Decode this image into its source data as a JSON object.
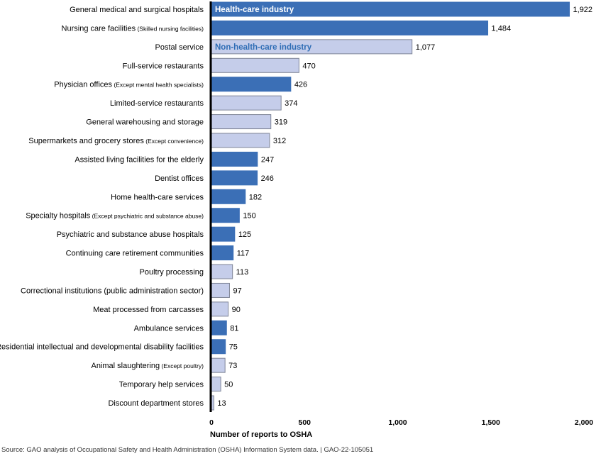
{
  "chart_data": {
    "type": "bar",
    "orientation": "horizontal",
    "xlabel": "Number of reports to OSHA",
    "xlim": [
      0,
      2000
    ],
    "xticks": [
      0,
      500,
      1000,
      1500,
      2000
    ],
    "xtick_labels": [
      "0",
      "500",
      "1,000",
      "1,500",
      "2,000"
    ],
    "grid": false,
    "legend": {
      "placement": "inside-bars-top",
      "entries": [
        {
          "name": "Health-care industry",
          "group": "health",
          "color": "#3b6fb6"
        },
        {
          "name": "Non-health-care industry",
          "group": "nonhealth",
          "color": "#c5cdea"
        }
      ]
    },
    "colors": {
      "health": "#3b6fb6",
      "nonhealth": "#c5cdea",
      "nonhealth_border": "#7f8597",
      "legend_text_nonhealth": "#2f6db5"
    },
    "bars": [
      {
        "label": "General medical and surgical hospitals",
        "note": "",
        "value": 1922,
        "value_label": "1,922",
        "group": "health"
      },
      {
        "label": "Nursing care facilities",
        "note": "(Skilled nursing facilities)",
        "value": 1484,
        "value_label": "1,484",
        "group": "health"
      },
      {
        "label": "Postal service",
        "note": "",
        "value": 1077,
        "value_label": "1,077",
        "group": "nonhealth"
      },
      {
        "label": "Full-service restaurants",
        "note": "",
        "value": 470,
        "value_label": "470",
        "group": "nonhealth"
      },
      {
        "label": "Physician offices",
        "note": "(Except mental health specialists)",
        "value": 426,
        "value_label": "426",
        "group": "health"
      },
      {
        "label": "Limited-service restaurants",
        "note": "",
        "value": 374,
        "value_label": "374",
        "group": "nonhealth"
      },
      {
        "label": "General warehousing and storage",
        "note": "",
        "value": 319,
        "value_label": "319",
        "group": "nonhealth"
      },
      {
        "label": "Supermarkets and grocery stores",
        "note": "(Except convenience)",
        "value": 312,
        "value_label": "312",
        "group": "nonhealth"
      },
      {
        "label": "Assisted living facilities for the elderly",
        "note": "",
        "value": 247,
        "value_label": "247",
        "group": "health"
      },
      {
        "label": "Dentist offices",
        "note": "",
        "value": 246,
        "value_label": "246",
        "group": "health"
      },
      {
        "label": "Home health-care services",
        "note": "",
        "value": 182,
        "value_label": "182",
        "group": "health"
      },
      {
        "label": "Specialty hospitals",
        "note": "(Except psychiatric and substance abuse)",
        "value": 150,
        "value_label": "150",
        "group": "health"
      },
      {
        "label": "Psychiatric and substance abuse hospitals",
        "note": "",
        "value": 125,
        "value_label": "125",
        "group": "health"
      },
      {
        "label": "Continuing care retirement communities",
        "note": "",
        "value": 117,
        "value_label": "117",
        "group": "health"
      },
      {
        "label": "Poultry processing",
        "note": "",
        "value": 113,
        "value_label": "113",
        "group": "nonhealth"
      },
      {
        "label": "Correctional institutions (public administration sector)",
        "note": "",
        "value": 97,
        "value_label": "97",
        "group": "nonhealth"
      },
      {
        "label": "Meat processed from carcasses",
        "note": "",
        "value": 90,
        "value_label": "90",
        "group": "nonhealth"
      },
      {
        "label": "Ambulance services",
        "note": "",
        "value": 81,
        "value_label": "81",
        "group": "health"
      },
      {
        "label": "Residential intellectual and developmental disability facilities",
        "note": "",
        "value": 75,
        "value_label": "75",
        "group": "health"
      },
      {
        "label": "Animal slaughtering",
        "note": "(Except poultry)",
        "value": 73,
        "value_label": "73",
        "group": "nonhealth"
      },
      {
        "label": "Temporary help services",
        "note": "",
        "value": 50,
        "value_label": "50",
        "group": "nonhealth"
      },
      {
        "label": "Discount department stores",
        "note": "",
        "value": 13,
        "value_label": "13",
        "group": "nonhealth"
      }
    ]
  },
  "source": "Source: GAO analysis of Occupational Safety and Health Administration (OSHA) Information System data.  |  GAO-22-105051"
}
